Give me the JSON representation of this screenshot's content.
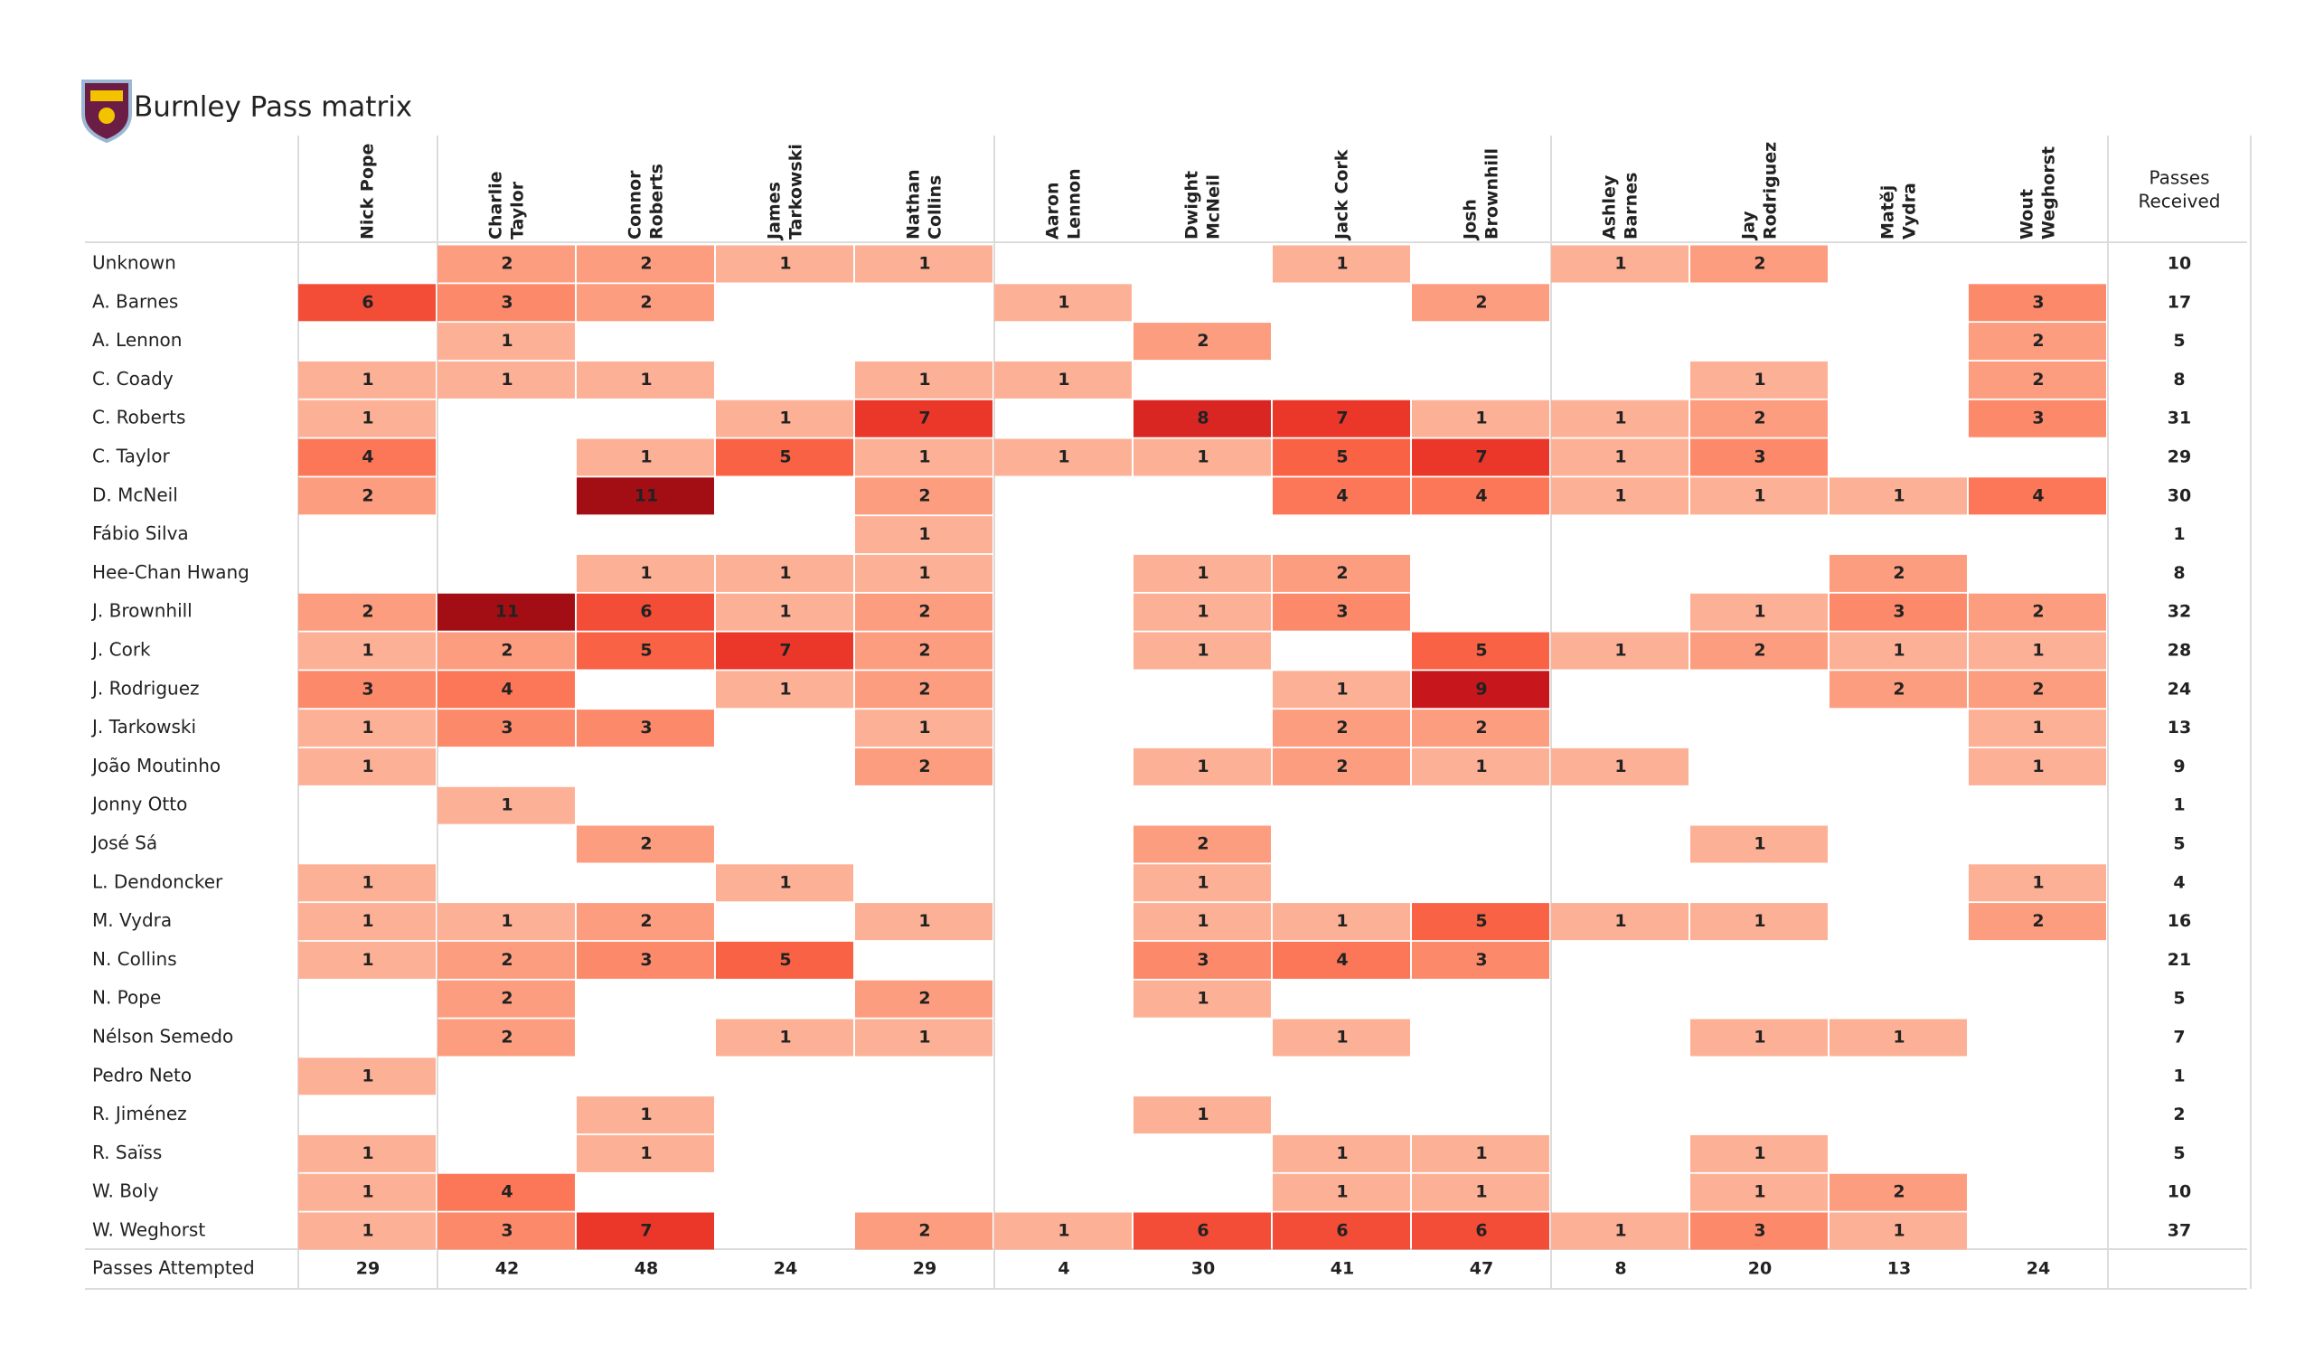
{
  "chart_data": {
    "type": "heatmap",
    "title": "Burnley Pass matrix",
    "columns": [
      [
        "Nick Pope"
      ],
      [
        "Charlie",
        "Taylor"
      ],
      [
        "Connor",
        "Roberts"
      ],
      [
        "James",
        "Tarkowski"
      ],
      [
        "Nathan",
        "Collins"
      ],
      [
        "Aaron",
        "Lennon"
      ],
      [
        "Dwight",
        "McNeil"
      ],
      [
        "Jack Cork"
      ],
      [
        "Josh",
        "Brownhill"
      ],
      [
        "Ashley",
        "Barnes"
      ],
      [
        "Jay",
        "Rodriguez"
      ],
      [
        "Matěj",
        "Vydra"
      ],
      [
        "Wout",
        "Weghorst"
      ]
    ],
    "total_column": [
      "Passes",
      "Received"
    ],
    "total_row": "Passes Attempted",
    "colormap": "Reds",
    "rows": [
      "Unknown",
      "A. Barnes",
      "A. Lennon",
      "C. Coady",
      "C. Roberts",
      "C. Taylor",
      "D. McNeil",
      "Fábio Silva",
      "Hee-Chan Hwang",
      "J. Brownhill",
      "J. Cork",
      "J. Rodriguez",
      "J. Tarkowski",
      "João Moutinho",
      "Jonny Otto",
      "José Sá",
      "L. Dendoncker",
      "M. Vydra",
      "N. Collins",
      "N. Pope",
      "Nélson Semedo",
      "Pedro Neto",
      "R. Jiménez",
      "R. Saïss",
      "W. Boly",
      "W. Weghorst"
    ],
    "values": [
      [
        null,
        2,
        2,
        1,
        1,
        null,
        null,
        1,
        null,
        1,
        2,
        null,
        null
      ],
      [
        6,
        3,
        2,
        null,
        null,
        1,
        null,
        null,
        2,
        null,
        null,
        null,
        3
      ],
      [
        null,
        1,
        null,
        null,
        null,
        null,
        2,
        null,
        null,
        null,
        null,
        null,
        2
      ],
      [
        1,
        1,
        1,
        null,
        1,
        1,
        null,
        null,
        null,
        null,
        1,
        null,
        2
      ],
      [
        1,
        null,
        null,
        1,
        7,
        null,
        8,
        7,
        1,
        1,
        2,
        null,
        3
      ],
      [
        4,
        null,
        1,
        5,
        1,
        1,
        1,
        5,
        7,
        1,
        3,
        null,
        null
      ],
      [
        2,
        null,
        11,
        null,
        2,
        null,
        null,
        4,
        4,
        1,
        1,
        1,
        4
      ],
      [
        null,
        null,
        null,
        null,
        1,
        null,
        null,
        null,
        null,
        null,
        null,
        null,
        null
      ],
      [
        null,
        null,
        1,
        1,
        1,
        null,
        1,
        2,
        null,
        null,
        null,
        2,
        null
      ],
      [
        2,
        11,
        6,
        1,
        2,
        null,
        1,
        3,
        null,
        null,
        1,
        3,
        2
      ],
      [
        1,
        2,
        5,
        7,
        2,
        null,
        1,
        null,
        5,
        1,
        2,
        1,
        1
      ],
      [
        3,
        4,
        null,
        1,
        2,
        null,
        null,
        1,
        9,
        null,
        null,
        2,
        2
      ],
      [
        1,
        3,
        3,
        null,
        1,
        null,
        null,
        2,
        2,
        null,
        null,
        null,
        1
      ],
      [
        1,
        null,
        null,
        null,
        2,
        null,
        1,
        2,
        1,
        1,
        null,
        null,
        1
      ],
      [
        null,
        1,
        null,
        null,
        null,
        null,
        null,
        null,
        null,
        null,
        null,
        null,
        null
      ],
      [
        null,
        null,
        2,
        null,
        null,
        null,
        2,
        null,
        null,
        null,
        1,
        null,
        null
      ],
      [
        1,
        null,
        null,
        1,
        null,
        null,
        1,
        null,
        null,
        null,
        null,
        null,
        1
      ],
      [
        1,
        1,
        2,
        null,
        1,
        null,
        1,
        1,
        5,
        1,
        1,
        null,
        2
      ],
      [
        1,
        2,
        3,
        5,
        null,
        null,
        3,
        4,
        3,
        null,
        null,
        null,
        null
      ],
      [
        null,
        2,
        null,
        null,
        2,
        null,
        1,
        null,
        null,
        null,
        null,
        null,
        null
      ],
      [
        null,
        2,
        null,
        1,
        1,
        null,
        null,
        1,
        null,
        null,
        1,
        1,
        null
      ],
      [
        1,
        null,
        null,
        null,
        null,
        null,
        null,
        null,
        null,
        null,
        null,
        null,
        null
      ],
      [
        null,
        null,
        1,
        null,
        null,
        null,
        1,
        null,
        null,
        null,
        null,
        null,
        null
      ],
      [
        1,
        null,
        1,
        null,
        null,
        null,
        null,
        1,
        1,
        null,
        1,
        null,
        null
      ],
      [
        1,
        4,
        null,
        null,
        null,
        null,
        null,
        1,
        1,
        null,
        1,
        2,
        null
      ],
      [
        1,
        3,
        7,
        null,
        2,
        1,
        6,
        6,
        6,
        1,
        3,
        1,
        null
      ]
    ],
    "row_totals": [
      10,
      17,
      5,
      8,
      31,
      29,
      30,
      1,
      8,
      32,
      28,
      24,
      13,
      9,
      1,
      5,
      4,
      16,
      21,
      5,
      7,
      1,
      2,
      5,
      10,
      37
    ],
    "column_totals": [
      29,
      42,
      48,
      24,
      29,
      4,
      30,
      41,
      47,
      8,
      20,
      13,
      24
    ]
  }
}
